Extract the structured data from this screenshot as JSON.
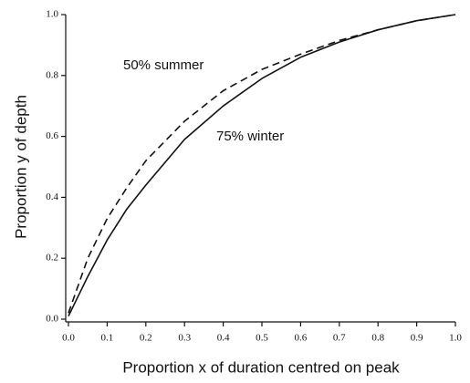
{
  "chart_data": {
    "type": "line",
    "x_label": "Proportion x of duration centred on peak",
    "y_label": "Proportion y of depth",
    "x": [
      0,
      0.05,
      0.1,
      0.15,
      0.2,
      0.3,
      0.4,
      0.5,
      0.6,
      0.7,
      0.8,
      0.9,
      1.0
    ],
    "series": [
      {
        "name": "50% summer",
        "color": "#111111",
        "style": "dashed",
        "values": [
          0.02,
          0.2,
          0.33,
          0.43,
          0.52,
          0.65,
          0.75,
          0.82,
          0.87,
          0.915,
          0.95,
          0.98,
          1.0
        ]
      },
      {
        "name": "75% winter",
        "color": "#111111",
        "style": "solid",
        "values": [
          0.01,
          0.14,
          0.26,
          0.36,
          0.44,
          0.59,
          0.7,
          0.79,
          0.86,
          0.91,
          0.95,
          0.98,
          1.0
        ]
      }
    ],
    "xlim": [
      0,
      1.0
    ],
    "ylim": [
      0,
      1.0
    ],
    "xticks": [
      {
        "value": 0,
        "label": "0.0"
      },
      0.1,
      0.2,
      0.3,
      0.4,
      0.5,
      0.6,
      0.7,
      0.8,
      0.9,
      {
        "value": 1.0,
        "label": "1.0"
      }
    ],
    "yticks": [
      {
        "value": 0,
        "label": "0.0"
      },
      0.2,
      0.4,
      0.6,
      0.8,
      {
        "value": 1.0,
        "label": "1.0"
      }
    ],
    "grid": false
  }
}
